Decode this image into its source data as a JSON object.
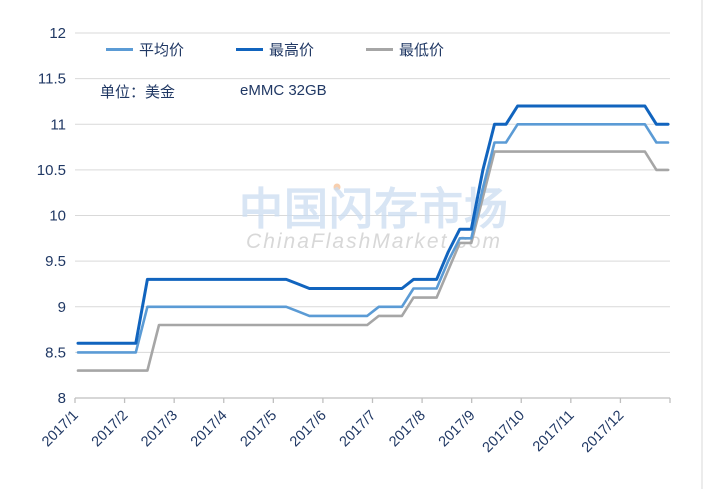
{
  "header": {
    "unit_label": "单位：美金",
    "product_label": "eMMC 32GB"
  },
  "watermark": {
    "title": "中国闪存市场",
    "subtitle": "ChinaFlashMarket.com"
  },
  "colors": {
    "avg_line": "#5B9BD5",
    "high_line": "#1164BE",
    "low_line": "#A6A6A6",
    "axis_text": "#203864",
    "gridline": "#D9D9D9",
    "axis_line": "#BFBFBF",
    "watermark_cn": "#CBDDF1",
    "watermark_en": "#D8D8D8"
  },
  "chart_data": {
    "type": "line",
    "title": "",
    "unit": "美金 (USD)",
    "product": "eMMC 32GB",
    "grid": true,
    "legend_position": "top",
    "legend": [
      "平均价",
      "最高价",
      "最低价"
    ],
    "x_axis": {
      "tick_labels": [
        "2017/1",
        "2017/2",
        "2017/3",
        "2017/4",
        "2017/5",
        "2017/6",
        "2017/7",
        "2017/8",
        "2017/9",
        "2017/10",
        "2017/11",
        "2017/12"
      ],
      "note": "weekly data points (52 weeks of 2017), monthly tick labels"
    },
    "y_axis": {
      "min": 8,
      "max": 12,
      "step": 0.5,
      "tick_labels": [
        "8",
        "8.5",
        "9",
        "9.5",
        "10",
        "10.5",
        "11",
        "11.5",
        "12"
      ]
    },
    "series": [
      {
        "name": "平均价",
        "color": "#5B9BD5",
        "values": [
          8.5,
          8.5,
          8.5,
          8.5,
          8.5,
          8.5,
          9.0,
          9.0,
          9.0,
          9.0,
          9.0,
          9.0,
          9.0,
          9.0,
          9.0,
          9.0,
          9.0,
          9.0,
          9.0,
          8.95,
          8.9,
          8.9,
          8.9,
          8.9,
          8.9,
          8.9,
          9.0,
          9.0,
          9.0,
          9.2,
          9.2,
          9.2,
          9.5,
          9.75,
          9.75,
          10.3,
          10.8,
          10.8,
          11.0,
          11.0,
          11.0,
          11.0,
          11.0,
          11.0,
          11.0,
          11.0,
          11.0,
          11.0,
          11.0,
          11.0,
          10.8,
          10.8
        ]
      },
      {
        "name": "最高价",
        "color": "#1164BE",
        "values": [
          8.6,
          8.6,
          8.6,
          8.6,
          8.6,
          8.6,
          9.3,
          9.3,
          9.3,
          9.3,
          9.3,
          9.3,
          9.3,
          9.3,
          9.3,
          9.3,
          9.3,
          9.3,
          9.3,
          9.25,
          9.2,
          9.2,
          9.2,
          9.2,
          9.2,
          9.2,
          9.2,
          9.2,
          9.2,
          9.3,
          9.3,
          9.3,
          9.6,
          9.85,
          9.85,
          10.5,
          11.0,
          11.0,
          11.2,
          11.2,
          11.2,
          11.2,
          11.2,
          11.2,
          11.2,
          11.2,
          11.2,
          11.2,
          11.2,
          11.2,
          11.0,
          11.0
        ]
      },
      {
        "name": "最低价",
        "color": "#A6A6A6",
        "values": [
          8.3,
          8.3,
          8.3,
          8.3,
          8.3,
          8.3,
          8.3,
          8.8,
          8.8,
          8.8,
          8.8,
          8.8,
          8.8,
          8.8,
          8.8,
          8.8,
          8.8,
          8.8,
          8.8,
          8.8,
          8.8,
          8.8,
          8.8,
          8.8,
          8.8,
          8.8,
          8.9,
          8.9,
          8.9,
          9.1,
          9.1,
          9.1,
          9.4,
          9.7,
          9.7,
          10.2,
          10.7,
          10.7,
          10.7,
          10.7,
          10.7,
          10.7,
          10.7,
          10.7,
          10.7,
          10.7,
          10.7,
          10.7,
          10.7,
          10.7,
          10.5,
          10.5
        ]
      }
    ]
  }
}
